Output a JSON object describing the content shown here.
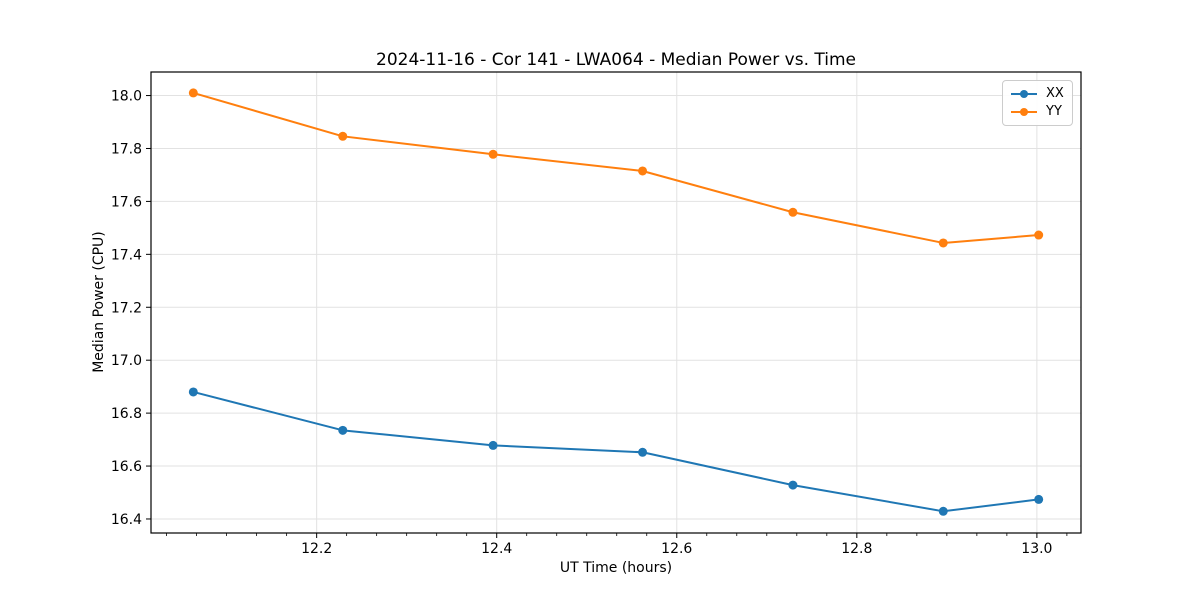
{
  "chart_data": {
    "type": "line",
    "title": "2024-11-16 - Cor 141 - LWA064 - Median Power vs. Time",
    "xlabel": "UT Time (hours)",
    "ylabel": "Median Power (CPU)",
    "x": [
      12.063,
      12.229,
      12.396,
      12.562,
      12.729,
      12.896,
      13.002
    ],
    "series": [
      {
        "name": "XX",
        "color": "#1f77b4",
        "values": [
          16.88,
          16.735,
          16.678,
          16.652,
          16.528,
          16.429,
          16.474
        ]
      },
      {
        "name": "YY",
        "color": "#ff7f0e",
        "values": [
          18.01,
          17.846,
          17.778,
          17.715,
          17.559,
          17.443,
          17.473
        ]
      }
    ],
    "xlim": [
      12.016,
      13.049
    ],
    "ylim": [
      16.347,
      18.089
    ],
    "x_major_ticks": [
      12.2,
      12.4,
      12.6,
      12.8,
      13.0
    ],
    "x_tick_labels": [
      "12.2",
      "12.4",
      "12.6",
      "12.8",
      "13.0"
    ],
    "x_minor_interval": 0.0333333,
    "y_major_ticks": [
      16.4,
      16.6,
      16.8,
      17.0,
      17.2,
      17.4,
      17.6,
      17.8,
      18.0
    ],
    "y_tick_labels": [
      "16.4",
      "16.6",
      "16.8",
      "17.0",
      "17.2",
      "17.4",
      "17.6",
      "17.8",
      "18.0"
    ],
    "grid": true,
    "legend_position": "upper right",
    "marker": "circle",
    "colors": {
      "background": "#ffffff",
      "grid": "#e2e2e2",
      "spine": "#000000",
      "tick_text": "#000000"
    }
  }
}
